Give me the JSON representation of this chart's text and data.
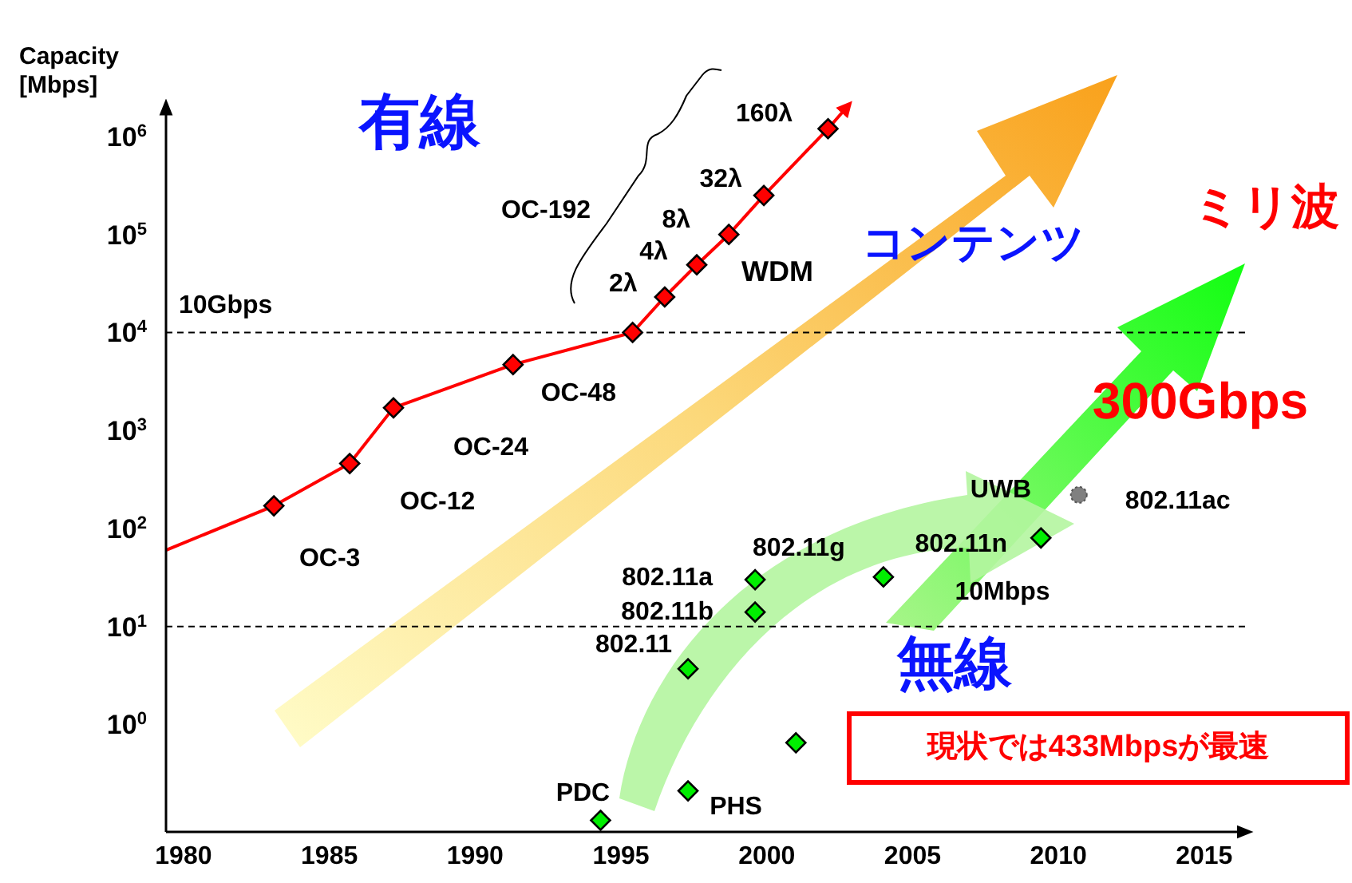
{
  "chart_data": {
    "type": "line",
    "ylabel": "Capacity\n[Mbps]",
    "log": "y",
    "xlim": [
      1979.4,
      2016.4
    ],
    "ylim": [
      0.08,
      2000000
    ],
    "xticks": [
      1980,
      1985,
      1990,
      1995,
      2000,
      2005,
      2010,
      2015
    ],
    "yticks": [
      {
        "value": 1,
        "label": "10$^{0}$"
      },
      {
        "value": 10,
        "label": "10$^{1}$"
      },
      {
        "value": 100,
        "label": "10$^{2}$"
      },
      {
        "value": 1000,
        "label": "10$^{3}$"
      },
      {
        "value": 10000,
        "label": "10$^{4}$"
      },
      {
        "value": 100000,
        "label": "10$^{5}$"
      },
      {
        "value": 1000000,
        "label": "10$^{6}$"
      }
    ],
    "ref_lines": [
      {
        "axis": "y",
        "value": 10000,
        "label": "10Gbps",
        "line_style": "dashed"
      },
      {
        "axis": "y",
        "value": 10,
        "label": "10Mbps",
        "line_style": "dashed"
      }
    ],
    "series": [
      {
        "color": "#ff0000",
        "marker": "none",
        "x": [
          1979.4,
          1983.1,
          1985.7,
          1987.2,
          1991.3,
          1995.4,
          1996.5,
          1997.6,
          1998.7,
          1999.9,
          2002.1,
          2002.75
        ],
        "values": [
          60,
          170,
          460,
          1700,
          4700,
          10000,
          23000,
          49000,
          100000,
          250000,
          1200000,
          2000000
        ]
      },
      {
        "type": "scatter",
        "color": "#ff0000",
        "marker": "diamond",
        "x": [
          1983.1,
          1985.7,
          1987.2,
          1991.3,
          1995.4,
          1996.5,
          1997.6,
          1998.7,
          1999.9,
          2002.1
        ],
        "values": [
          170,
          460,
          1700,
          4700,
          10000,
          23000,
          49000,
          100000,
          250000,
          1200000
        ]
      },
      {
        "type": "scatter",
        "color": "#00ee00",
        "marker": "diamond",
        "x": [
          1994.3,
          1997.3,
          1997.3,
          1999.6,
          1999.6,
          2004.0,
          2001.0,
          2009.4
        ],
        "values": [
          0.105,
          0.21,
          3.7,
          14,
          30,
          32,
          0.65,
          80
        ]
      },
      {
        "type": "scatter",
        "color": "#808080",
        "marker": "circle",
        "x": [
          2010.7
        ],
        "values": [
          220
        ]
      }
    ],
    "annotations": [
      {
        "text": "OC-3",
        "x": 1983.1,
        "y": 170
      },
      {
        "text": "OC-12",
        "x": 1985.7,
        "y": 460
      },
      {
        "text": "OC-24",
        "x": 1987.2,
        "y": 1700
      },
      {
        "text": "OC-48",
        "x": 1991.3,
        "y": 4700
      },
      {
        "text": "2λ",
        "x": 1996.5,
        "y": 23000
      },
      {
        "text": "4λ",
        "x": 1997.6,
        "y": 49000
      },
      {
        "text": "8λ",
        "x": 1998.7,
        "y": 100000
      },
      {
        "text": "32λ",
        "x": 1999.9,
        "y": 250000
      },
      {
        "text": "160λ",
        "x": 2002.1,
        "y": 1200000
      },
      {
        "text": "PDC",
        "x": 1994.3,
        "y": 0.105
      },
      {
        "text": "PHS",
        "x": 1997.3,
        "y": 0.21
      },
      {
        "text": "802.11",
        "x": 1997.3,
        "y": 3.7
      },
      {
        "text": "802.11b",
        "x": 1999.6,
        "y": 14
      },
      {
        "text": "802.11a",
        "x": 1999.6,
        "y": 30
      },
      {
        "text": "802.11g",
        "x": 2004.0,
        "y": 32
      },
      {
        "text": "802.11n",
        "x": 2009.4,
        "y": 80
      },
      {
        "text": "802.11ac",
        "x": 2010.7,
        "y": 220
      },
      "OC-192",
      "WDM",
      "UWB",
      "有線",
      "コンテンツ",
      "ミリ波",
      "300Gbps",
      "無線",
      "現状では433Mbpsが最速"
    ]
  }
}
